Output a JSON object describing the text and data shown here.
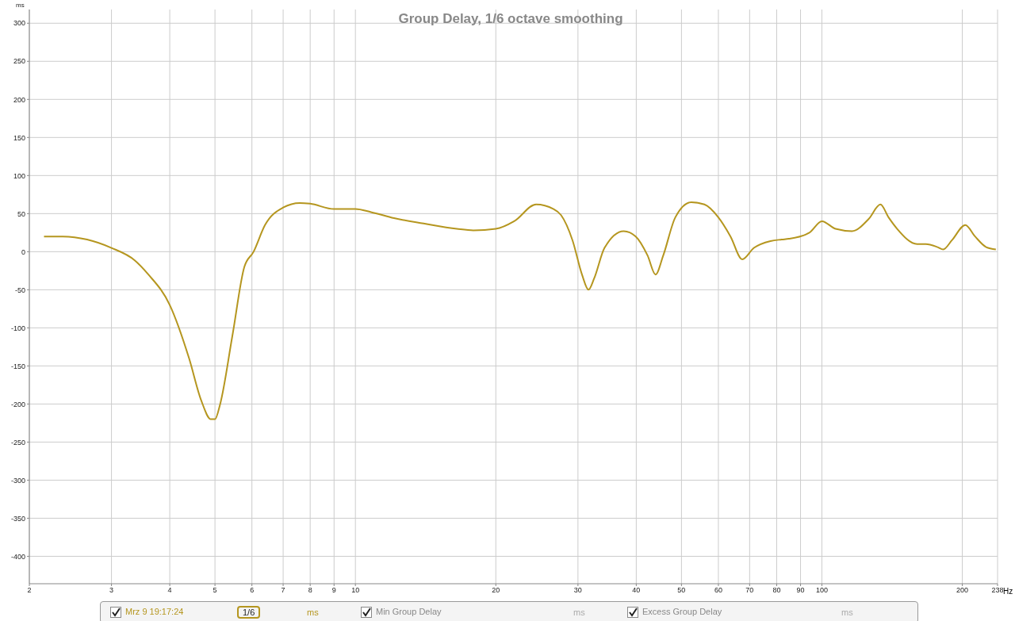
{
  "chart_data": {
    "type": "line",
    "title": "Group Delay, 1/6 octave smoothing",
    "xlabel": "Hz",
    "ylabel": "ms",
    "log": "x",
    "grid": true,
    "legend": "bottom",
    "marker": "none",
    "line_style": "solid",
    "xlim": [
      2,
      238
    ],
    "xticks": [
      2,
      3,
      4,
      5,
      6,
      7,
      8,
      9,
      10,
      20,
      30,
      40,
      50,
      60,
      70,
      80,
      90,
      100,
      200,
      238
    ],
    "ylim": [
      -436,
      318
    ],
    "yticks": [
      -400,
      -350,
      -300,
      -250,
      -200,
      -150,
      -100,
      -50,
      0,
      50,
      100,
      150,
      200,
      250,
      300
    ],
    "annotations": [
      "1/6",
      "ms",
      "Min Group Delay",
      "ms",
      "Excess Group Delay",
      "ms"
    ],
    "series": [
      {
        "name": "Mrz 9 19:17:24",
        "color": "#b5961f",
        "x": [
          2.15,
          2.36,
          2.66,
          3.0,
          3.36,
          3.6,
          4.0,
          4.4,
          4.67,
          4.9,
          5.0,
          5.13,
          5.45,
          5.78,
          6.05,
          6.4,
          7.0,
          7.6,
          8,
          9,
          10,
          10.8,
          12.1,
          14.0,
          16.5,
          17.9,
          20,
          21.9,
          24.4,
          26.6,
          27.6,
          29.2,
          30.6,
          31.6,
          32.5,
          34.2,
          37.6,
          39.9,
          42.3,
          44.0,
          45.7,
          48.5,
          52.5,
          56,
          60,
          63.7,
          67.5,
          71.5,
          77.6,
          82,
          85,
          94,
          100,
          107,
          116,
          126,
          133.5,
          139,
          145,
          160,
          167,
          177,
          182,
          190,
          203,
          213,
          225,
          236
        ],
        "values": [
          20,
          20,
          16,
          5,
          -11,
          -30,
          -70,
          -140,
          -195,
          -220,
          -220,
          -200,
          -110,
          -20,
          0,
          35,
          58,
          64,
          63,
          56,
          56,
          52,
          44,
          37,
          30,
          28,
          30,
          40,
          62,
          56,
          48,
          15,
          -30,
          -50,
          -35,
          5,
          27,
          20,
          -5,
          -30,
          -5,
          45,
          65,
          62,
          45,
          20,
          -10,
          5,
          14,
          16,
          17,
          25,
          40,
          30,
          27,
          43,
          62,
          45,
          30,
          10,
          10,
          6,
          3,
          15,
          35,
          20,
          6,
          3
        ]
      }
    ]
  }
}
